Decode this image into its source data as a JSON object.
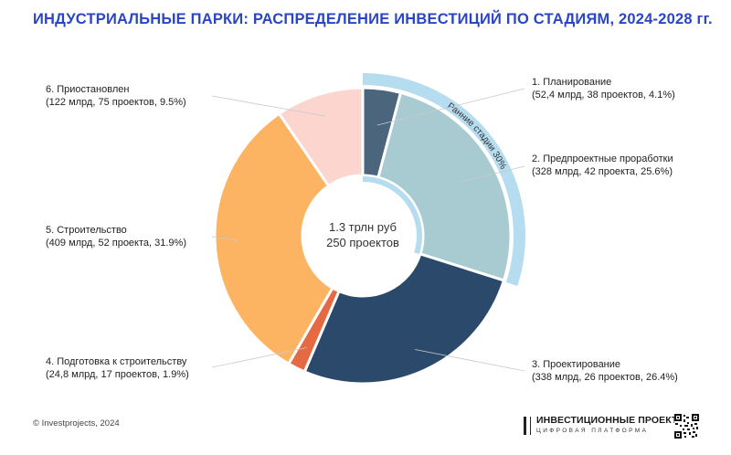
{
  "title": "ИНДУСТРИАЛЬНЫЕ ПАРКИ: РАСПРЕДЕЛЕНИЕ ИНВЕСТИЦИЙ ПО СТАДИЯМ, 2024-2028 гг.",
  "center": {
    "line1": "1.3 трлн руб",
    "line2": "250 проектов"
  },
  "arc_label": "Ранние стадии 30%",
  "copyright": "© Investprojects, 2024",
  "brand": {
    "name": "ИНВЕСТИЦИОННЫЕ ПРОЕКТЫ",
    "sub": "ЦИФРОВАЯ ПЛАТФОРМА",
    "mark_icon": "building-bars-icon",
    "qr_icon": "qr-code-icon"
  },
  "chart_data": {
    "type": "pie",
    "title": "ИНДУСТРИАЛЬНЫЕ ПАРКИ: РАСПРЕДЕЛЕНИЕ ИНВЕСТИЦИЙ ПО СТАДИЯМ, 2024-2028 гг.",
    "total_label": "1.3 трлн руб",
    "projects_label": "250 проектов",
    "slices": [
      {
        "name": "1. Планирование",
        "detail": "(52,4 млрд, 38 проектов, 4.1%)",
        "value": 52.4,
        "projects": 38,
        "percent": 4.1,
        "color": "#4a657c"
      },
      {
        "name": "2. Предпроектные проработки",
        "detail": "(328 млрд, 42 проекта, 25.6%)",
        "value": 328,
        "projects": 42,
        "percent": 25.6,
        "color": "#a8cbd1"
      },
      {
        "name": "3. Проектирование",
        "detail": "(338 млрд, 26 проектов, 26.4%)",
        "value": 338,
        "projects": 26,
        "percent": 26.4,
        "color": "#2b4a6b"
      },
      {
        "name": "4. Подготовка к строительству",
        "detail": "(24,8 млрд, 17 проектов, 1.9%)",
        "value": 24.8,
        "projects": 17,
        "percent": 1.9,
        "color": "#e56a44"
      },
      {
        "name": "5. Строительство",
        "detail": "(409 млрд, 52 проекта, 31.9%)",
        "value": 409,
        "projects": 52,
        "percent": 31.9,
        "color": "#fdb462"
      },
      {
        "name": "6. Приостановлен",
        "detail": "(122 млрд, 75 проектов, 9.5%)",
        "value": 122,
        "projects": 75,
        "percent": 9.5,
        "color": "#fdd5cf"
      }
    ],
    "highlight": {
      "label": "Ранние стадии 30%",
      "slices": [
        0,
        1
      ],
      "percent": 30,
      "color": "#b5dcef"
    }
  }
}
